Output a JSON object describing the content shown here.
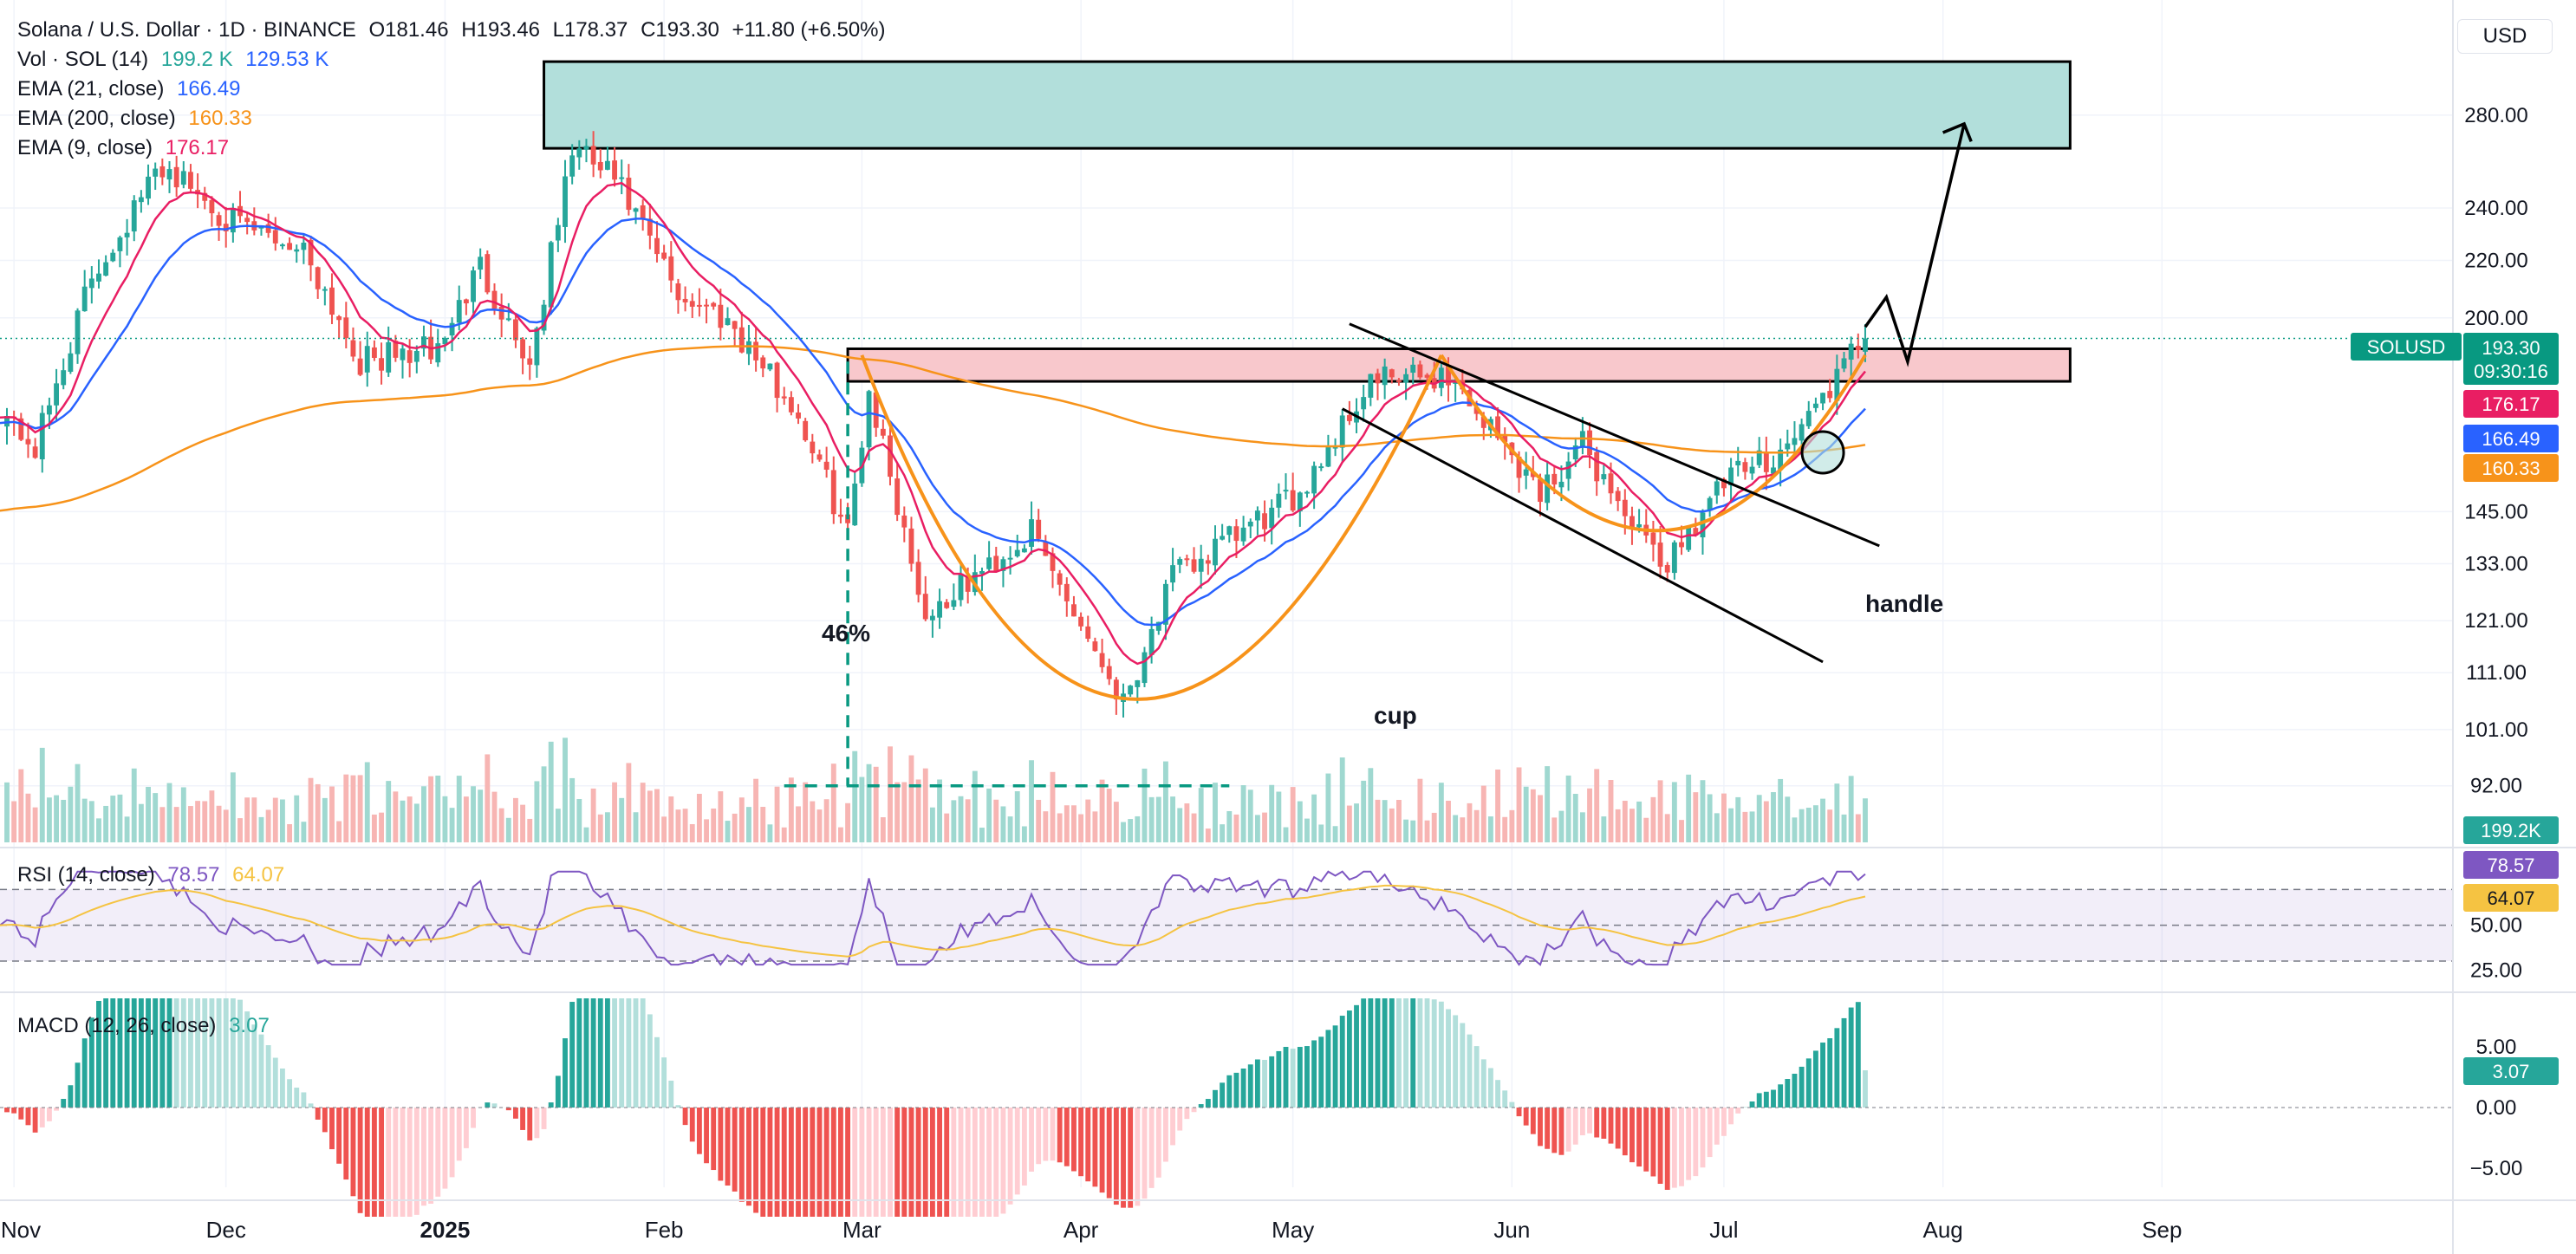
{
  "header": {
    "symbol": "Solana / U.S. Dollar · 1D · BINANCE",
    "open": "O181.46",
    "high": "H193.46",
    "low": "L178.37",
    "close": "C193.30",
    "change": "+11.80 (+6.50%)",
    "currency": "USD"
  },
  "legend": {
    "vol_label": "Vol · SOL (14)",
    "vol_value": "199.2 K",
    "vol_ma": "129.53 K",
    "ema21_label": "EMA (21, close)",
    "ema21_value": "166.49",
    "ema200_label": "EMA (200, close)",
    "ema200_value": "160.33",
    "ema9_label": "EMA (9, close)",
    "ema9_value": "176.17",
    "rsi_label": "RSI (14, close)",
    "rsi_value": "78.57",
    "rsi_ma": "64.07",
    "macd_label": "MACD (12, 26, close)",
    "macd_value": "3.07"
  },
  "price_badges": {
    "symbol": "SOLUSD",
    "last": "193.30",
    "countdown": "09:30:16",
    "ema9": "176.17",
    "ema21": "166.49",
    "ema200": "160.33",
    "volume": "199.2K",
    "rsi": "78.57",
    "rsi_ma": "64.07",
    "macd": "3.07"
  },
  "annotations": {
    "drop": "46%",
    "cup": "cup",
    "handle": "handle"
  },
  "colors": {
    "up": "#26a69a",
    "down": "#ef5350",
    "ema9": "#e91e63",
    "ema21": "#2962ff",
    "ema200": "#f7931a",
    "rsi": "#7e57c2",
    "rsi_ma": "#f5c342",
    "target_zone": "#b2dfdb",
    "resistance_zone": "#f8c8cc"
  },
  "chart_data": {
    "type": "candlestick",
    "price_axis_ticks": [
      "280.00",
      "240.00",
      "220.00",
      "200.00",
      "145.00",
      "133.00",
      "121.00",
      "111.00",
      "101.00",
      "92.00"
    ],
    "rsi_axis_ticks": [
      "50.00",
      "25.00"
    ],
    "macd_axis_ticks": [
      "5.00",
      "0.00",
      "−5.00"
    ],
    "x_labels": [
      "Nov",
      "Dec",
      "2025",
      "Feb",
      "Mar",
      "Apr",
      "May",
      "Jun",
      "Jul",
      "Aug",
      "Sep"
    ],
    "scale": "log",
    "y_range": [
      84,
      320
    ],
    "close_path": [
      {
        "date": "2024-10-30",
        "close": 172
      },
      {
        "date": "2024-11-04",
        "close": 161
      },
      {
        "date": "2024-11-12",
        "close": 214
      },
      {
        "date": "2024-11-22",
        "close": 258
      },
      {
        "date": "2024-12-03",
        "close": 232
      },
      {
        "date": "2024-12-12",
        "close": 225
      },
      {
        "date": "2024-12-20",
        "close": 186
      },
      {
        "date": "2024-12-31",
        "close": 190
      },
      {
        "date": "2025-01-06",
        "close": 218
      },
      {
        "date": "2025-01-13",
        "close": 185
      },
      {
        "date": "2025-01-19",
        "close": 265
      },
      {
        "date": "2025-01-25",
        "close": 252
      },
      {
        "date": "2025-02-03",
        "close": 208
      },
      {
        "date": "2025-02-10",
        "close": 200
      },
      {
        "date": "2025-02-20",
        "close": 170
      },
      {
        "date": "2025-02-27",
        "close": 140
      },
      {
        "date": "2025-03-02",
        "close": 178
      },
      {
        "date": "2025-03-10",
        "close": 122
      },
      {
        "date": "2025-03-25",
        "close": 140
      },
      {
        "date": "2025-04-07",
        "close": 106
      },
      {
        "date": "2025-04-14",
        "close": 130
      },
      {
        "date": "2025-05-01",
        "close": 148
      },
      {
        "date": "2025-05-12",
        "close": 180
      },
      {
        "date": "2025-05-23",
        "close": 182
      },
      {
        "date": "2025-06-05",
        "close": 150
      },
      {
        "date": "2025-06-11",
        "close": 162
      },
      {
        "date": "2025-06-22",
        "close": 132
      },
      {
        "date": "2025-07-01",
        "close": 152
      },
      {
        "date": "2025-07-10",
        "close": 162
      },
      {
        "date": "2025-07-21",
        "close": 193.3
      }
    ],
    "zones": [
      {
        "name": "target",
        "from_date": "2025-01-15",
        "to_date": "2025-08-19",
        "low": 265,
        "high": 306
      },
      {
        "name": "resistance",
        "from_date": "2025-02-27",
        "to_date": "2025-08-19",
        "low": 180,
        "high": 190
      }
    ]
  }
}
